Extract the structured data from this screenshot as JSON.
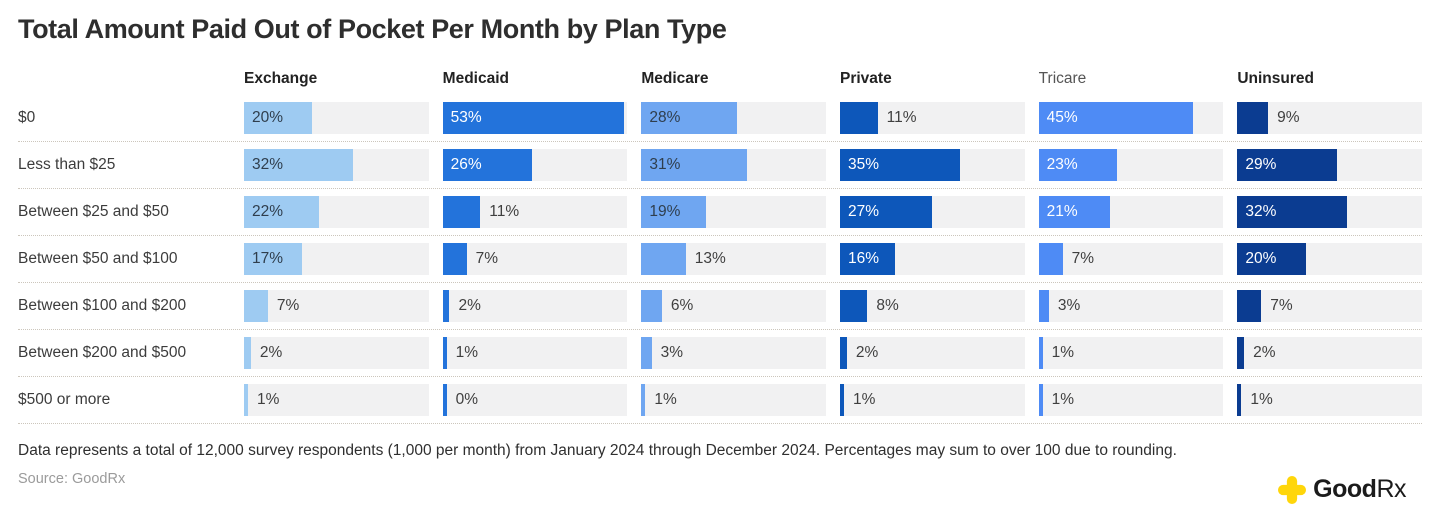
{
  "title": "Total Amount Paid Out of Pocket Per Month by Plan Type",
  "chart_data": {
    "type": "bar",
    "orientation": "horizontal",
    "title": "Total Amount Paid Out of Pocket Per Month by Plan Type",
    "categories": [
      "$0",
      "Less than $25",
      "Between $25 and $50",
      "Between $50 and $100",
      "Between $100 and $200",
      "Between $200 and $500",
      "$500 or more"
    ],
    "series": [
      {
        "name": "Exchange",
        "header_bold": true,
        "color": "#9ECBF2",
        "label_color": "#2f3e4d",
        "values": [
          20,
          32,
          22,
          17,
          7,
          2,
          1
        ]
      },
      {
        "name": "Medicaid",
        "header_bold": true,
        "color": "#2373DB",
        "label_color": "#ffffff",
        "values": [
          53,
          26,
          11,
          7,
          2,
          1,
          0
        ]
      },
      {
        "name": "Medicare",
        "header_bold": true,
        "color": "#6FA6F1",
        "label_color": "#2f3e4d",
        "values": [
          28,
          31,
          19,
          13,
          6,
          3,
          1
        ]
      },
      {
        "name": "Private",
        "header_bold": true,
        "color": "#0D57BA",
        "label_color": "#ffffff",
        "values": [
          11,
          35,
          27,
          16,
          8,
          2,
          1
        ]
      },
      {
        "name": "Tricare",
        "header_bold": false,
        "color": "#4E8BF5",
        "label_color": "#ffffff",
        "values": [
          45,
          23,
          21,
          7,
          3,
          1,
          1
        ]
      },
      {
        "name": "Uninsured",
        "header_bold": true,
        "color": "#0B3C91",
        "label_color": "#ffffff",
        "values": [
          9,
          29,
          32,
          20,
          7,
          2,
          1
        ]
      }
    ],
    "value_suffix": "%",
    "scale_max": 54,
    "inside_label_min": 16,
    "track_color": "#f1f1f2",
    "grid": false,
    "legend_position": "none"
  },
  "footnote": "Data represents a total of 12,000 survey respondents (1,000 per month) from January 2024 through December 2024. Percentages may sum to over 100 due to rounding.",
  "source": "Source: GoodRx",
  "brand": {
    "name": "GoodRx",
    "wordmark_bold": "Good",
    "wordmark_rest": "Rx",
    "cross_color": "#FFD60A"
  }
}
